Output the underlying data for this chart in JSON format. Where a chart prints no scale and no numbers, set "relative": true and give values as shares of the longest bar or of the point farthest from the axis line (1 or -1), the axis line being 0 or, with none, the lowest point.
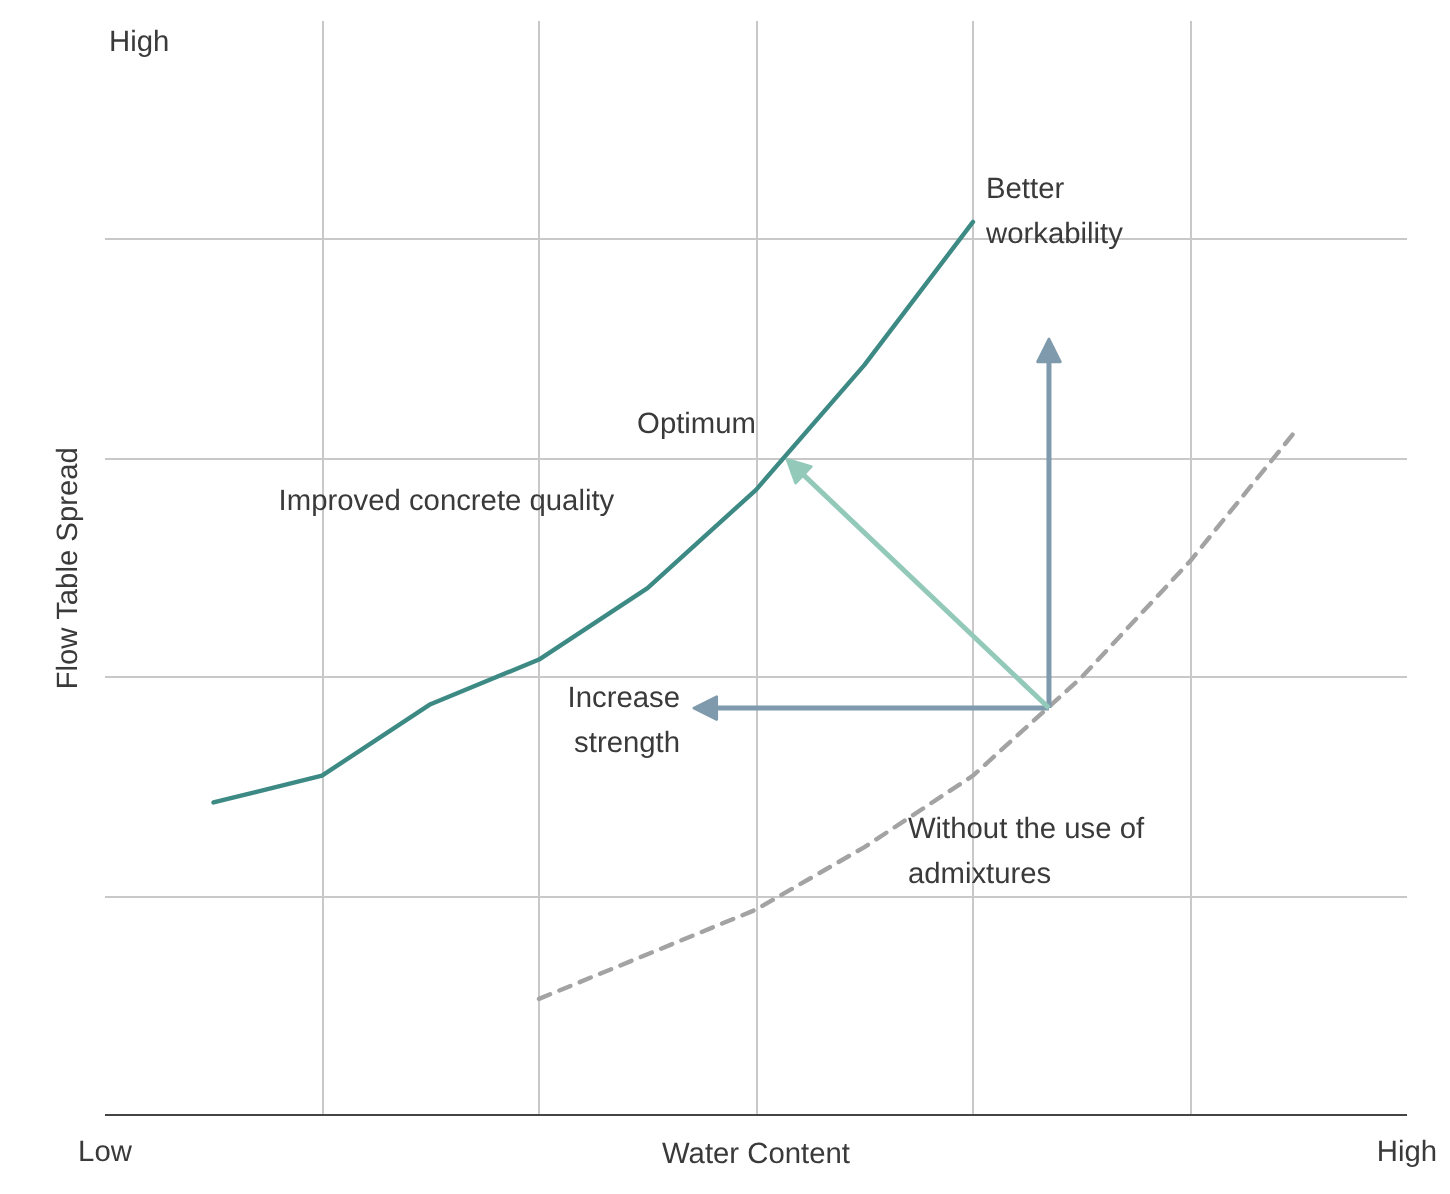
{
  "chart_data": {
    "type": "line",
    "xlabel": "Water Content",
    "ylabel": "Flow Table Spread",
    "relative": true,
    "categories": [
      "Low",
      null,
      null,
      null,
      null,
      null,
      null,
      null,
      null,
      null,
      null,
      null,
      "High"
    ],
    "grid": true,
    "marker": "none",
    "series": [
      {
        "color": "#3d8a85",
        "line_style": "solid",
        "values": [
          null,
          0.35,
          0.38,
          0.46,
          0.51,
          0.59,
          0.7,
          0.84,
          1.0,
          null,
          null,
          null,
          null
        ]
      },
      {
        "color": "#a3a3a3",
        "line_style": "dashed",
        "values": [
          null,
          null,
          null,
          null,
          0.13,
          0.18,
          0.23,
          0.3,
          0.38,
          0.49,
          0.62,
          0.77,
          null
        ]
      }
    ],
    "annotations": [
      "High",
      "Optimum",
      "Better\nworkability",
      "Increase\nstrength",
      "Improved concrete quality",
      "Without the use of\nadmixtures"
    ]
  }
}
